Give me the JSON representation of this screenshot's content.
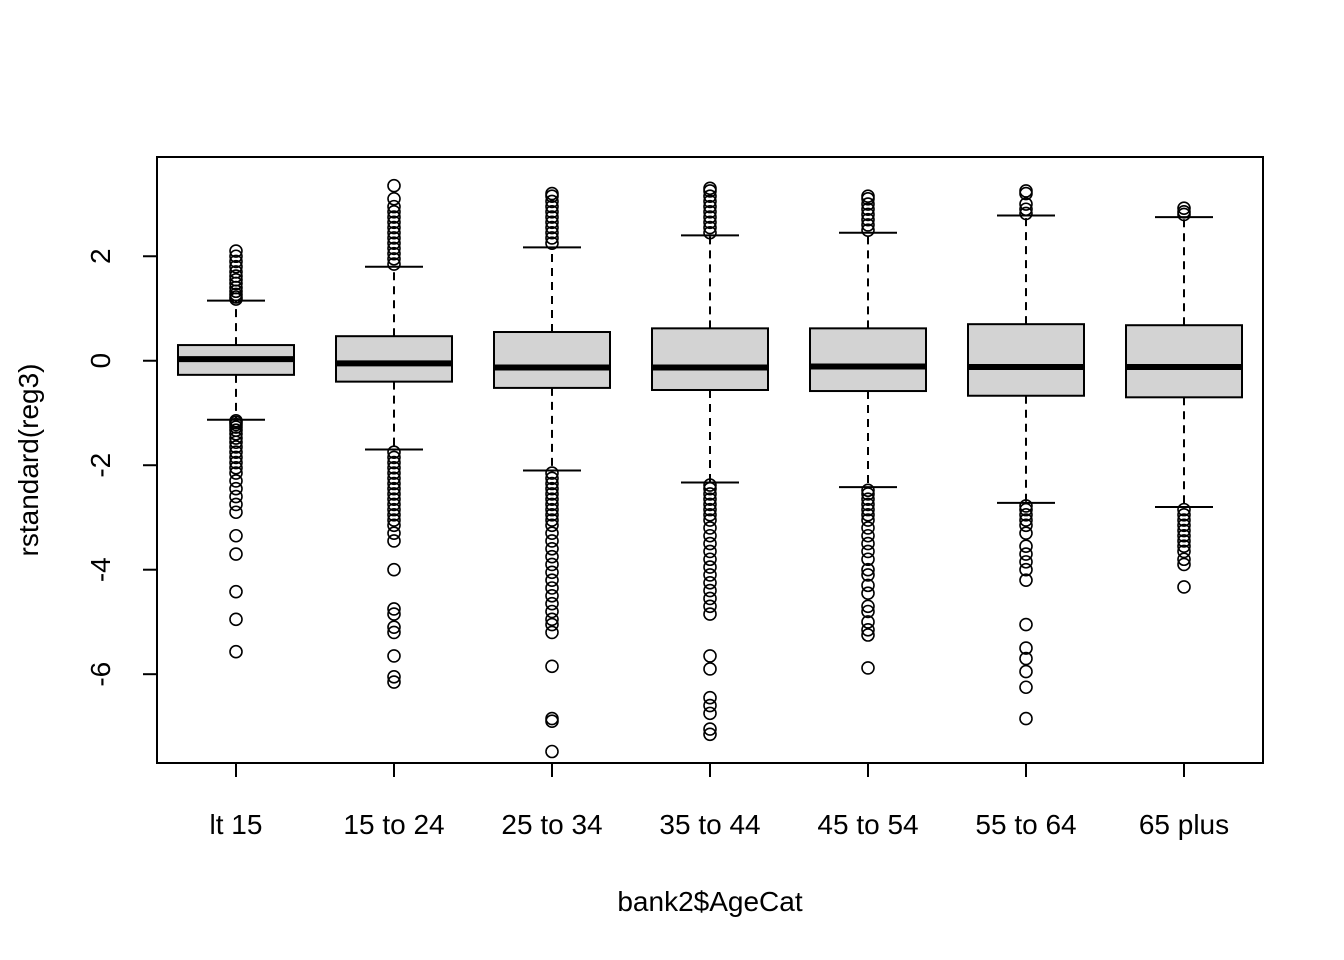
{
  "chart_data": {
    "type": "boxplot",
    "xlabel": "bank2$AgeCat",
    "ylabel": "rstandard(reg3)",
    "ylim": [
      -7.7,
      3.9
    ],
    "yticks": [
      -6,
      -4,
      -2,
      0,
      2
    ],
    "box_fill": "#d3d3d3",
    "categories": [
      "lt 15",
      "15 to 24",
      "25 to 34",
      "35 to 44",
      "45 to 54",
      "55 to 64",
      "65 plus"
    ],
    "boxes": [
      {
        "whisker_low": -1.13,
        "q1": -0.27,
        "median": 0.03,
        "q3": 0.3,
        "whisker_high": 1.15,
        "outliers": [
          1.18,
          1.22,
          1.27,
          1.33,
          1.4,
          1.48,
          1.55,
          1.62,
          1.7,
          1.8,
          1.9,
          2.0,
          2.1,
          -1.15,
          -1.18,
          -1.22,
          -1.27,
          -1.33,
          -1.4,
          -1.48,
          -1.56,
          -1.65,
          -1.75,
          -1.85,
          -1.95,
          -2.05,
          -2.15,
          -2.3,
          -2.45,
          -2.6,
          -2.75,
          -2.9,
          -3.35,
          -3.7,
          -4.42,
          -4.95,
          -5.57
        ]
      },
      {
        "whisker_low": -1.7,
        "q1": -0.4,
        "median": -0.05,
        "q3": 0.47,
        "whisker_high": 1.8,
        "outliers": [
          1.85,
          1.95,
          2.05,
          2.15,
          2.25,
          2.35,
          2.45,
          2.55,
          2.65,
          2.75,
          2.85,
          2.95,
          3.1,
          3.35,
          -1.75,
          -1.85,
          -1.95,
          -2.05,
          -2.15,
          -2.25,
          -2.35,
          -2.45,
          -2.55,
          -2.65,
          -2.75,
          -2.85,
          -2.95,
          -3.05,
          -3.15,
          -3.3,
          -3.45,
          -4.0,
          -4.75,
          -4.85,
          -5.1,
          -5.2,
          -5.65,
          -6.05,
          -6.15
        ]
      },
      {
        "whisker_low": -2.1,
        "q1": -0.52,
        "median": -0.13,
        "q3": 0.55,
        "whisker_high": 2.17,
        "outliers": [
          2.25,
          2.35,
          2.45,
          2.55,
          2.65,
          2.75,
          2.85,
          2.95,
          3.05,
          3.15,
          3.2,
          -2.15,
          -2.25,
          -2.35,
          -2.45,
          -2.55,
          -2.65,
          -2.75,
          -2.85,
          -2.95,
          -3.05,
          -3.15,
          -3.3,
          -3.45,
          -3.6,
          -3.75,
          -3.9,
          -4.05,
          -4.2,
          -4.35,
          -4.5,
          -4.65,
          -4.8,
          -4.95,
          -5.05,
          -5.2,
          -5.85,
          -6.85,
          -6.9,
          -7.48
        ]
      },
      {
        "whisker_low": -2.33,
        "q1": -0.56,
        "median": -0.13,
        "q3": 0.62,
        "whisker_high": 2.4,
        "outliers": [
          2.45,
          2.55,
          2.65,
          2.75,
          2.85,
          2.95,
          3.05,
          3.15,
          3.25,
          3.3,
          -2.38,
          -2.45,
          -2.55,
          -2.65,
          -2.75,
          -2.85,
          -2.95,
          -3.05,
          -3.2,
          -3.35,
          -3.5,
          -3.65,
          -3.8,
          -3.95,
          -4.1,
          -4.25,
          -4.4,
          -4.55,
          -4.7,
          -4.85,
          -5.65,
          -5.9,
          -6.45,
          -6.6,
          -6.75,
          -7.05,
          -7.15
        ]
      },
      {
        "whisker_low": -2.42,
        "q1": -0.58,
        "median": -0.11,
        "q3": 0.62,
        "whisker_high": 2.45,
        "outliers": [
          2.5,
          2.6,
          2.7,
          2.8,
          2.9,
          3.0,
          3.1,
          3.15,
          -2.48,
          -2.55,
          -2.65,
          -2.75,
          -2.85,
          -2.95,
          -3.05,
          -3.2,
          -3.35,
          -3.5,
          -3.65,
          -3.8,
          -4.0,
          -4.1,
          -4.3,
          -4.45,
          -4.7,
          -4.8,
          -5.0,
          -5.15,
          -5.25,
          -5.88
        ]
      },
      {
        "whisker_low": -2.72,
        "q1": -0.67,
        "median": -0.12,
        "q3": 0.7,
        "whisker_high": 2.78,
        "outliers": [
          2.82,
          2.9,
          3.0,
          3.2,
          3.25,
          -2.78,
          -2.85,
          -2.95,
          -3.05,
          -3.15,
          -3.3,
          -3.55,
          -3.7,
          -3.85,
          -4.0,
          -4.2,
          -5.05,
          -5.5,
          -5.7,
          -5.95,
          -6.25,
          -6.85
        ]
      },
      {
        "whisker_low": -2.8,
        "q1": -0.7,
        "median": -0.12,
        "q3": 0.68,
        "whisker_high": 2.75,
        "outliers": [
          2.8,
          2.85,
          2.92,
          -2.85,
          -2.95,
          -3.05,
          -3.15,
          -3.25,
          -3.35,
          -3.45,
          -3.55,
          -3.65,
          -3.8,
          -3.9,
          -4.33
        ]
      }
    ]
  }
}
